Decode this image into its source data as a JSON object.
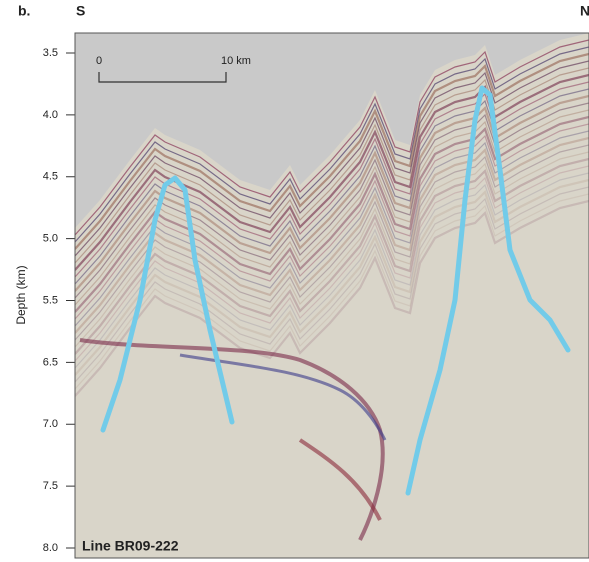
{
  "figure": {
    "panel_label": "b.",
    "left_label": "S",
    "right_label": "N",
    "axis_title": "Depth (km)",
    "depth_ticks": [
      "3.5",
      "4.0",
      "4.5",
      "5.0",
      "5.5",
      "6.5",
      "7.0",
      "7.5",
      "8.0"
    ],
    "scale_bar": {
      "start": "0",
      "end": "10 km"
    },
    "line_label": "Line BR09-222"
  }
}
